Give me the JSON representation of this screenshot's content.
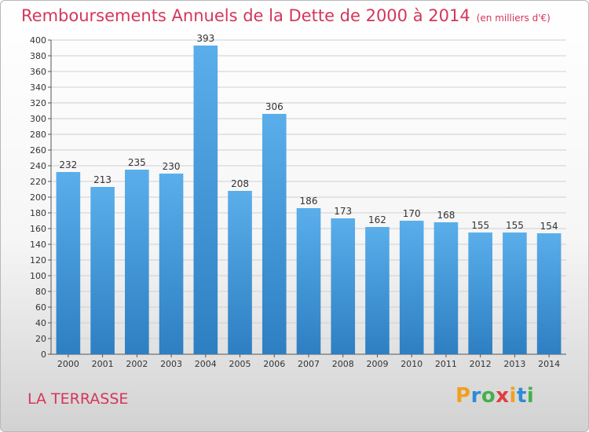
{
  "chart_data": {
    "type": "bar",
    "title": "Remboursements Annuels de la Dette de 2000 à 2014",
    "unit": "(en milliers d'€)",
    "categories": [
      "2000",
      "2001",
      "2002",
      "2003",
      "2004",
      "2005",
      "2006",
      "2007",
      "2008",
      "2009",
      "2010",
      "2011",
      "2012",
      "2013",
      "2014"
    ],
    "values": [
      232,
      213,
      235,
      230,
      393,
      208,
      306,
      186,
      173,
      162,
      170,
      168,
      155,
      155,
      154
    ],
    "ylim": [
      0,
      400
    ],
    "ytick_step": 20,
    "grid": true,
    "colors": {
      "bar_light": "#5aaeea",
      "bar_dark": "#2d7fc2",
      "grid": "#cfcfcf",
      "title": "#d4365a"
    }
  },
  "footer": {
    "place": "LA TERRASSE"
  },
  "logo": {
    "text": "Proxiti",
    "letters": [
      {
        "ch": "P",
        "color": "#f0a020"
      },
      {
        "ch": "r",
        "color": "#2e8bd6"
      },
      {
        "ch": "o",
        "color": "#46b04a"
      },
      {
        "ch": "x",
        "color": "#e43c3c"
      },
      {
        "ch": "i",
        "color": "#f0a020"
      },
      {
        "ch": "t",
        "color": "#2e8bd6"
      },
      {
        "ch": "i",
        "color": "#46b04a"
      }
    ]
  }
}
